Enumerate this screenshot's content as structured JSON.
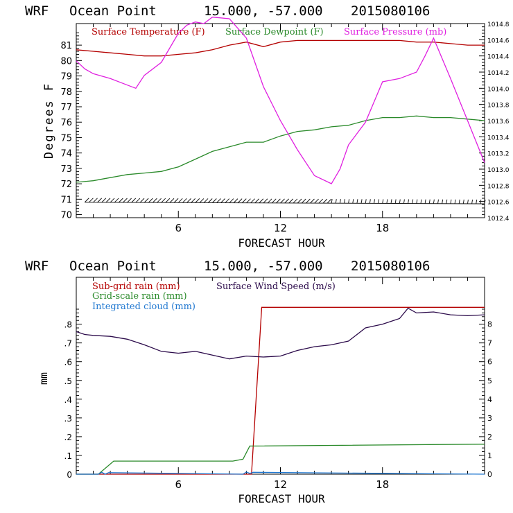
{
  "chart_data": [
    {
      "type": "line",
      "title": {
        "model": "WRF",
        "location": "Ocean Point",
        "coords": "15.000, -57.000",
        "run": "2015080106"
      },
      "xlabel": "FORECAST HOUR",
      "ylabel": "Degrees F",
      "xlim": [
        0,
        24
      ],
      "ylim": [
        69.8,
        82.4
      ],
      "y2lim": [
        1012.4,
        1014.8
      ],
      "x_ticks": [
        6,
        12,
        18
      ],
      "y_ticks": [
        70,
        71,
        72,
        73,
        74,
        75,
        76,
        77,
        78,
        79,
        80,
        81
      ],
      "y2_ticks": [
        "1012.4",
        "1012.6",
        "1012.8",
        "1013.0",
        "1013.2",
        "1013.4",
        "1013.6",
        "1013.8",
        "1014.0",
        "1014.2",
        "1014.4",
        "1014.6",
        "1014.8"
      ],
      "colors": {
        "temperature": "#b40000",
        "dewpoint": "#2a8a2a",
        "pressure": "#e020e0",
        "wind": "#1a1a1a"
      },
      "series": [
        {
          "name": "Surface Temperature (F)",
          "key": "temperature",
          "axis": "left",
          "x": [
            0,
            1,
            2,
            3,
            4,
            5,
            6,
            7,
            8,
            9,
            10,
            11,
            12,
            13,
            14,
            15,
            16,
            17,
            18,
            19,
            20,
            21,
            22,
            23,
            24
          ],
          "values": [
            80.7,
            80.6,
            80.5,
            80.4,
            80.3,
            80.3,
            80.4,
            80.5,
            80.7,
            81.0,
            81.2,
            80.9,
            81.2,
            81.3,
            81.3,
            81.3,
            81.3,
            81.3,
            81.3,
            81.3,
            81.2,
            81.2,
            81.1,
            81.0,
            81.0
          ]
        },
        {
          "name": "Surface Dewpoint (F)",
          "key": "dewpoint",
          "axis": "left",
          "x": [
            0,
            1,
            2,
            3,
            4,
            5,
            6,
            7,
            8,
            9,
            10,
            11,
            12,
            13,
            14,
            15,
            16,
            17,
            18,
            19,
            20,
            21,
            22,
            23,
            24
          ],
          "values": [
            72.1,
            72.2,
            72.4,
            72.6,
            72.7,
            72.8,
            73.1,
            73.6,
            74.1,
            74.4,
            74.7,
            74.7,
            75.1,
            75.4,
            75.5,
            75.7,
            75.8,
            76.1,
            76.3,
            76.3,
            76.4,
            76.3,
            76.3,
            76.2,
            76.1
          ]
        },
        {
          "name": "Surface Pressure (mb)",
          "key": "pressure",
          "axis": "right",
          "x": [
            0,
            0.5,
            1,
            2,
            3,
            3.5,
            4,
            5,
            6,
            6.5,
            7,
            7.5,
            8,
            9,
            10,
            10.5,
            11,
            12,
            13,
            14,
            15,
            15.5,
            16,
            17,
            18,
            19,
            20,
            20.5,
            21,
            22,
            23,
            24
          ],
          "values": [
            1014.34,
            1014.24,
            1014.18,
            1014.12,
            1014.04,
            1014.0,
            1014.16,
            1014.32,
            1014.68,
            1014.78,
            1014.82,
            1014.8,
            1014.88,
            1014.86,
            1014.62,
            1014.32,
            1014.02,
            1013.6,
            1013.24,
            1012.92,
            1012.82,
            1013.0,
            1013.3,
            1013.58,
            1014.08,
            1014.12,
            1014.2,
            1014.4,
            1014.62,
            1014.12,
            1013.6,
            1013.08
          ]
        },
        {
          "name": "Surface Wind",
          "key": "wind",
          "axis": "left",
          "style": "barbs",
          "x": [
            0.5,
            24
          ],
          "values": [
            70.8,
            70.7
          ]
        }
      ]
    },
    {
      "type": "line",
      "title": {
        "model": "WRF",
        "location": "Ocean Point",
        "coords": "15.000, -57.000",
        "run": "2015080106"
      },
      "xlabel": "FORECAST HOUR",
      "ylabel": "mm",
      "xlim": [
        0,
        24
      ],
      "ylim": [
        0,
        1.05
      ],
      "y2lim": [
        0,
        10.5
      ],
      "x_ticks": [
        6,
        12,
        18
      ],
      "y_ticks": [
        "0",
        ".1",
        ".2",
        ".3",
        ".4",
        ".5",
        ".6",
        ".7",
        ".8"
      ],
      "y2_ticks": [
        "0",
        "1",
        "2",
        "3",
        "4",
        "5",
        "6",
        "7",
        "8"
      ],
      "colors": {
        "subgrid": "#b40000",
        "gridscale": "#2a8a2a",
        "cloud": "#1f77d0",
        "wind": "#2b0a4a"
      },
      "series": [
        {
          "name": "Sub-grid rain (mm)",
          "key": "subgrid",
          "axis": "left",
          "x": [
            0,
            10.3,
            10.9,
            24
          ],
          "values": [
            0,
            0,
            0.89,
            0.89
          ]
        },
        {
          "name": "Grid-scale rain (mm)",
          "key": "gridscale",
          "axis": "left",
          "x": [
            0,
            1.3,
            2.2,
            9.2,
            9.8,
            10.2,
            24
          ],
          "values": [
            0,
            0,
            0.07,
            0.07,
            0.08,
            0.15,
            0.16
          ]
        },
        {
          "name": "Integrated cloud (mm)",
          "key": "cloud",
          "axis": "left",
          "x": [
            0,
            1.3,
            1.5,
            1.7,
            1.9,
            9.8,
            10.0,
            10.2,
            10.4,
            24
          ],
          "values": [
            0,
            0,
            0.01,
            0.0,
            0.008,
            0,
            0.012,
            0.004,
            0.01,
            0
          ]
        },
        {
          "name": "Surface Wind Speed (m/s)",
          "key": "wind",
          "axis": "right",
          "x": [
            0,
            0.5,
            1,
            2,
            3,
            4,
            5,
            6,
            7,
            8,
            9,
            10,
            11,
            12,
            13,
            14,
            15,
            16,
            17,
            18,
            19,
            19.5,
            20,
            21,
            22,
            23,
            24
          ],
          "values": [
            7.6,
            7.45,
            7.4,
            7.35,
            7.2,
            6.9,
            6.55,
            6.45,
            6.55,
            6.35,
            6.15,
            6.3,
            6.25,
            6.3,
            6.6,
            6.8,
            6.9,
            7.1,
            7.8,
            8.0,
            8.3,
            8.85,
            8.6,
            8.65,
            8.5,
            8.45,
            8.5
          ]
        }
      ]
    }
  ]
}
